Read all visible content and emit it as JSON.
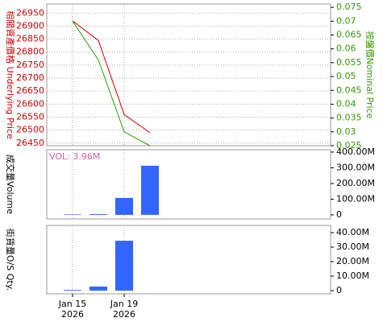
{
  "chart_data": [
    {
      "type": "line",
      "categories": [
        "Jan 15\n2026",
        null,
        "Jan 19\n2026",
        null
      ],
      "ylabel": "相關資產價格 Underlying Price",
      "y2label": "按盤價Nominal Price",
      "ylim": [
        26440,
        26985
      ],
      "yticks": [
        26450,
        26500,
        26550,
        26600,
        26650,
        26700,
        26750,
        26800,
        26850,
        26900,
        26950
      ],
      "y2lim": [
        0.025,
        0.0762
      ],
      "y2ticks": [
        0.025,
        0.03,
        0.035,
        0.04,
        0.045,
        0.05,
        0.055,
        0.06,
        0.065,
        0.07,
        0.075
      ],
      "ycolor": "#cc0000",
      "y2color": "#339900",
      "grid": true,
      "series": [
        {
          "name": "Underlying Price",
          "color": "#cc0000",
          "values": [
            26920,
            26845,
            26560,
            26490
          ]
        },
        {
          "name": "Nominal Price",
          "color": "#339900",
          "axis": "y2",
          "values": [
            0.07,
            0.056,
            0.03,
            0.025
          ]
        }
      ]
    },
    {
      "type": "bar",
      "ylabel": "成交量Volume",
      "annotation": "VOL: 3.96M",
      "values": [
        3,
        5,
        108,
        313
      ],
      "color": "#3366ff",
      "y2lim": [
        -26,
        415
      ],
      "y2ticks": [
        0,
        {
          "value": 100,
          "label": "100.00M"
        },
        {
          "value": 200,
          "label": "200.00M"
        },
        {
          "value": 300,
          "label": "300.00M"
        },
        {
          "value": 400,
          "label": "400.00M"
        }
      ]
    },
    {
      "type": "bar",
      "ylabel": "街貨量O/S Qty.",
      "values": [
        0.5,
        2.8,
        34.4,
        null
      ],
      "color": "#3366ff",
      "y2lim": [
        -2.2,
        45
      ],
      "y2ticks": [
        0,
        {
          "value": 10,
          "label": "10.00M"
        },
        {
          "value": 20,
          "label": "20.00M"
        },
        {
          "value": 30,
          "label": "30.00M"
        },
        {
          "value": 40,
          "label": "40.00M"
        }
      ]
    }
  ]
}
